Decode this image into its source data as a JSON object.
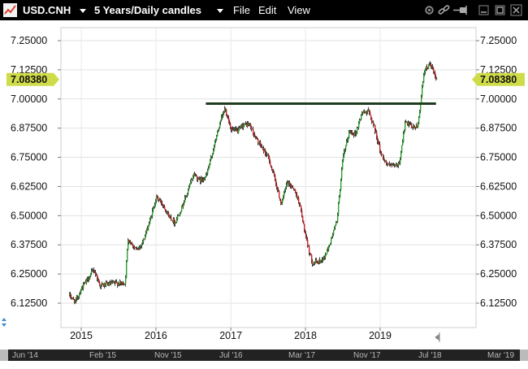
{
  "window": {
    "symbol": "USD.CNH",
    "period": "5 Years/Daily candles",
    "menu": [
      "File",
      "Edit",
      "View"
    ]
  },
  "colors": {
    "up": "#2ca02c",
    "down": "#cc2222",
    "wick": "#111111",
    "trendline": "#1e3d1e",
    "badge": "#cfdc4a"
  },
  "chart_data": {
    "type": "candlestick",
    "title": "",
    "xlabel": "",
    "ylabel": "",
    "ylim": [
      6.05,
      7.33
    ],
    "y_ticks": [
      "7.25000",
      "7.12500",
      "7.00000",
      "6.87500",
      "6.75000",
      "6.62500",
      "6.50000",
      "6.37500",
      "6.25000",
      "6.12500"
    ],
    "x_labels": [
      "2015",
      "2016",
      "2017",
      "2018",
      "2019"
    ],
    "last_price": "7.08380",
    "grid": true,
    "trendline": {
      "start": "2016-09",
      "end": "2019-10",
      "value": 6.98
    },
    "price_path": [
      [
        "2014-11",
        6.16
      ],
      [
        "2014-12",
        6.13
      ],
      [
        "2015-01",
        6.19
      ],
      [
        "2015-02",
        6.23
      ],
      [
        "2015-03",
        6.27
      ],
      [
        "2015-04",
        6.2
      ],
      [
        "2015-06",
        6.21
      ],
      [
        "2015-08",
        6.21
      ],
      [
        "2015-08-15",
        6.4
      ],
      [
        "2015-09",
        6.38
      ],
      [
        "2015-10",
        6.35
      ],
      [
        "2015-11",
        6.4
      ],
      [
        "2015-12",
        6.48
      ],
      [
        "2016-01",
        6.58
      ],
      [
        "2016-02",
        6.55
      ],
      [
        "2016-03",
        6.5
      ],
      [
        "2016-04",
        6.47
      ],
      [
        "2016-05",
        6.53
      ],
      [
        "2016-06",
        6.6
      ],
      [
        "2016-07",
        6.68
      ],
      [
        "2016-08",
        6.65
      ],
      [
        "2016-09",
        6.67
      ],
      [
        "2016-10",
        6.77
      ],
      [
        "2016-11",
        6.88
      ],
      [
        "2016-12",
        6.96
      ],
      [
        "2017-01",
        6.87
      ],
      [
        "2017-02",
        6.86
      ],
      [
        "2017-03",
        6.89
      ],
      [
        "2017-04",
        6.89
      ],
      [
        "2017-05",
        6.83
      ],
      [
        "2017-06",
        6.79
      ],
      [
        "2017-07",
        6.75
      ],
      [
        "2017-08",
        6.66
      ],
      [
        "2017-09",
        6.55
      ],
      [
        "2017-10",
        6.64
      ],
      [
        "2017-11",
        6.62
      ],
      [
        "2017-12",
        6.55
      ],
      [
        "2018-01",
        6.4
      ],
      [
        "2018-02",
        6.3
      ],
      [
        "2018-03",
        6.3
      ],
      [
        "2018-04",
        6.32
      ],
      [
        "2018-05",
        6.39
      ],
      [
        "2018-06",
        6.48
      ],
      [
        "2018-07",
        6.75
      ],
      [
        "2018-08",
        6.86
      ],
      [
        "2018-09",
        6.85
      ],
      [
        "2018-10",
        6.94
      ],
      [
        "2018-11",
        6.95
      ],
      [
        "2018-12",
        6.88
      ],
      [
        "2019-01",
        6.77
      ],
      [
        "2019-02",
        6.72
      ],
      [
        "2019-03",
        6.71
      ],
      [
        "2019-04",
        6.72
      ],
      [
        "2019-05",
        6.9
      ],
      [
        "2019-06",
        6.88
      ],
      [
        "2019-07",
        6.88
      ],
      [
        "2019-08",
        7.12
      ],
      [
        "2019-09",
        7.15
      ],
      [
        "2019-10",
        7.08
      ]
    ]
  },
  "navigator": {
    "labels": [
      "Jun '14",
      "Feb '15",
      "Nov '15",
      "Jul '16",
      "Mar '17",
      "Nov '17",
      "Jul '18",
      "Mar '19"
    ]
  }
}
